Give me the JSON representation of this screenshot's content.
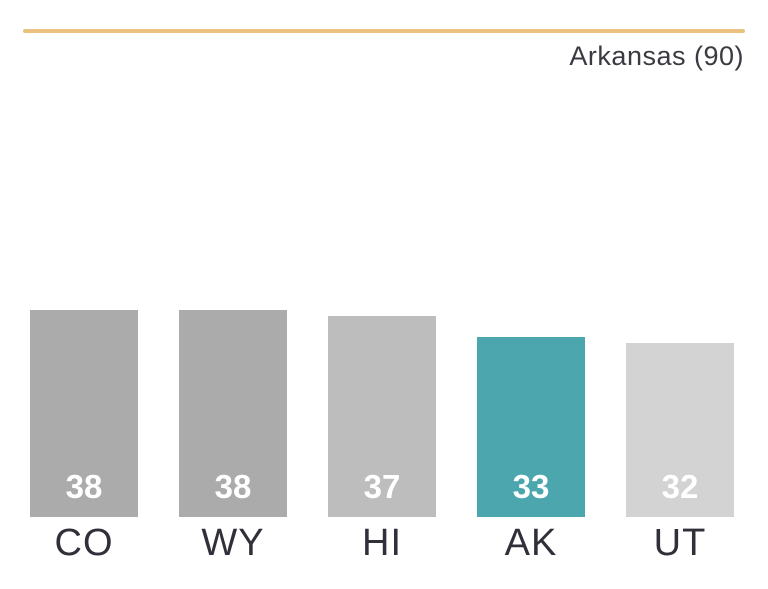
{
  "chart_data": {
    "type": "bar",
    "categories": [
      "CO",
      "WY",
      "HI",
      "AK",
      "UT"
    ],
    "values": [
      38,
      38,
      37,
      33,
      32
    ],
    "bar_colors": [
      "#ababab",
      "#ababab",
      "#bdbdbd",
      "#4ba6ae",
      "#d3d3d3"
    ],
    "value_label_color": "#ffffff",
    "highlight_category": "AK",
    "highlight_color": "#4ba6ae",
    "reference_line": {
      "label": "Arkansas (90)",
      "value": 90,
      "color": "#eac27e"
    },
    "title": "",
    "xlabel": "",
    "ylabel": "",
    "ylim": [
      0,
      90
    ],
    "grid": false,
    "legend": false
  },
  "colors": {
    "background": "#ffffff",
    "text_dark": "#3a3a43",
    "axis_label": "#30303a"
  }
}
